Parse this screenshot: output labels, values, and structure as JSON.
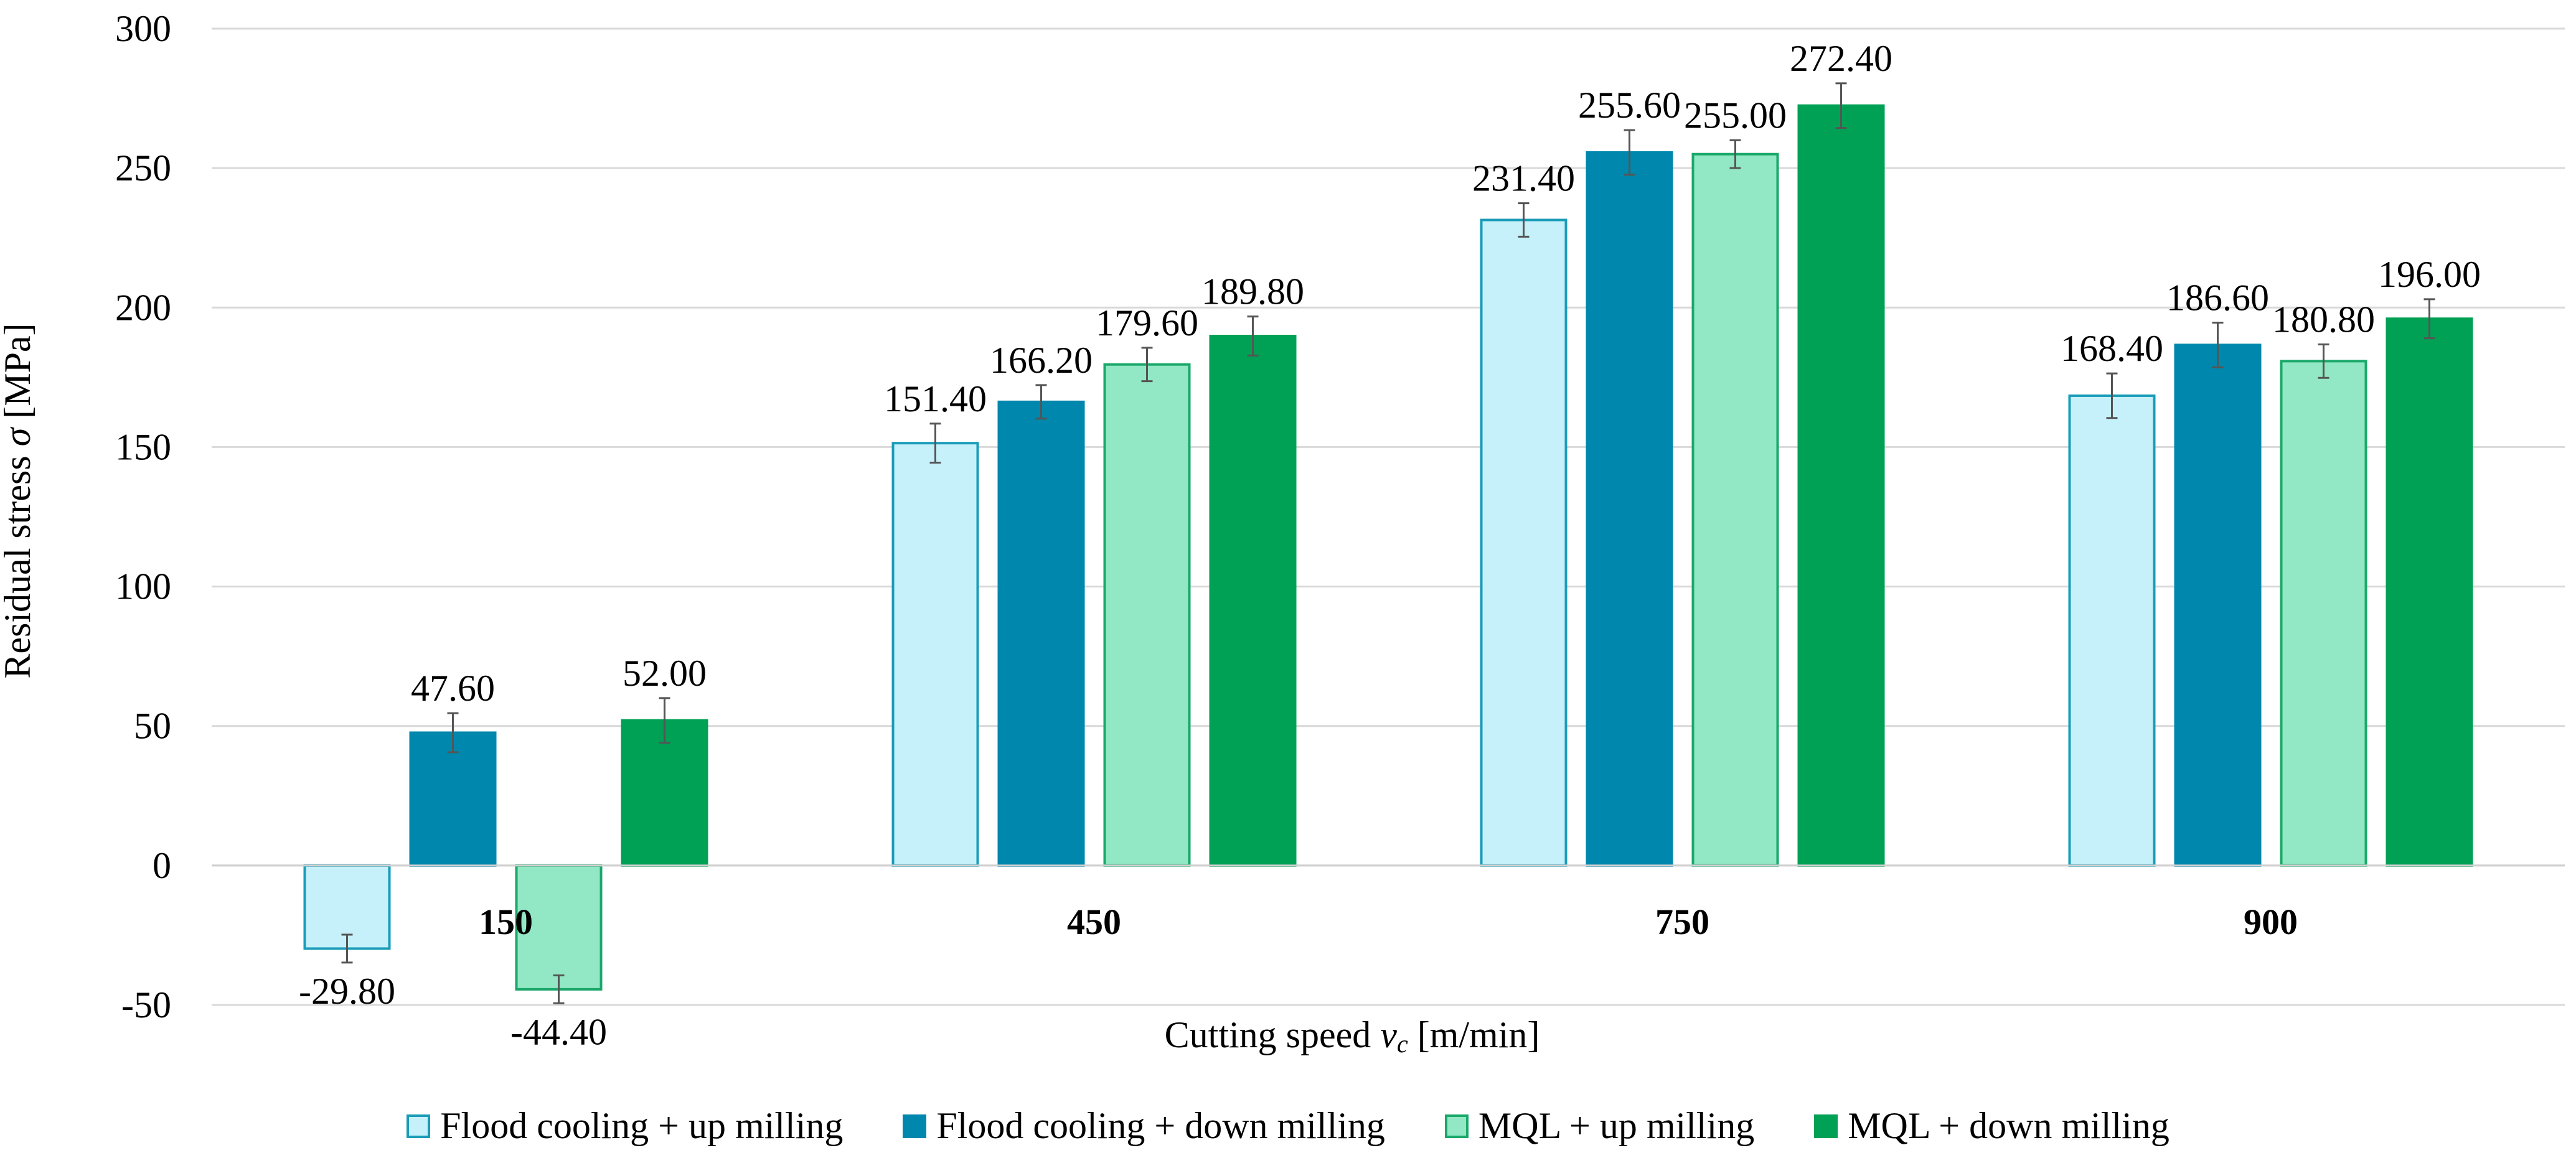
{
  "chart_data": {
    "type": "bar",
    "categories": [
      "150",
      "450",
      "750",
      "900"
    ],
    "series": [
      {
        "name": "Flood cooling + up milling",
        "values": [
          -29.8,
          151.4,
          231.4,
          168.4
        ],
        "errors": [
          5,
          7,
          6,
          8
        ],
        "color": "#c6f1fa",
        "stroke": "#1a9cb8"
      },
      {
        "name": "Flood cooling + down milling",
        "values": [
          47.6,
          166.2,
          255.6,
          186.6
        ],
        "errors": [
          7,
          6,
          8,
          8
        ],
        "color": "#0087ad",
        "stroke": "#0087ad"
      },
      {
        "name": "MQL + up milling",
        "values": [
          -44.4,
          179.6,
          255.0,
          180.8
        ],
        "errors": [
          5,
          6,
          5,
          6
        ],
        "color": "#92e8c4",
        "stroke": "#1aa86a"
      },
      {
        "name": "MQL + down milling",
        "values": [
          52.0,
          189.8,
          272.4,
          196.0
        ],
        "errors": [
          8,
          7,
          8,
          7
        ],
        "color": "#00a154",
        "stroke": "#00a154"
      }
    ],
    "data_labels": [
      [
        "-29.80",
        "151.40",
        "231.40",
        "168.40"
      ],
      [
        "47.60",
        "166.20",
        "255.60",
        "186.60"
      ],
      [
        "-44.40",
        "179.60",
        "255.00",
        "180.80"
      ],
      [
        "52.00",
        "189.80",
        "272.40",
        "196.00"
      ]
    ],
    "ylim": [
      -50,
      300
    ],
    "yticks": [
      -50,
      0,
      50,
      100,
      150,
      200,
      250,
      300
    ],
    "ylabel_text": "Residual stress ",
    "ylabel_symbol": "σ",
    "ylabel_unit": " [MPa]",
    "xlabel_text": "Cutting speed ",
    "xlabel_symbol": "v",
    "xlabel_sub": "c",
    "xlabel_unit": " [m/min]",
    "grid": true,
    "legend_position": "bottom"
  }
}
